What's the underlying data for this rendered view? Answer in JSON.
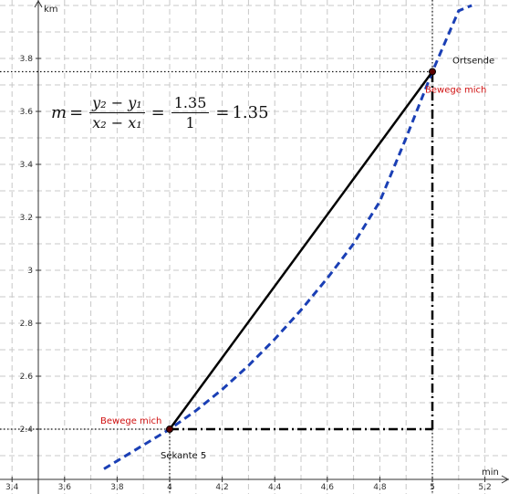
{
  "chart_data": {
    "type": "line",
    "xlabel": "min",
    "ylabel": "km",
    "xlim": [
      3.3,
      5.3
    ],
    "ylim": [
      2.25,
      4.0
    ],
    "grid": true,
    "x_ticks": [
      "3,4",
      "3,6",
      "3,8",
      "4",
      "4,2",
      "4,4",
      "4,6",
      "4,8",
      "5",
      "5,2"
    ],
    "x_tick_values": [
      3.4,
      3.6,
      3.8,
      4.0,
      4.2,
      4.4,
      4.6,
      4.8,
      5.0,
      5.2
    ],
    "y_ticks": [
      "2.4",
      "2.6",
      "2.8",
      "3",
      "3.2",
      "3.4",
      "3.6",
      "3.8"
    ],
    "y_tick_values": [
      2.4,
      2.6,
      2.8,
      3.0,
      3.2,
      3.4,
      3.6,
      3.8
    ],
    "curve": {
      "style": "dashed",
      "color": "#1a3fb5",
      "points": [
        [
          3.75,
          2.25
        ],
        [
          3.8,
          2.28
        ],
        [
          3.9,
          2.34
        ],
        [
          4.0,
          2.4
        ],
        [
          4.1,
          2.47
        ],
        [
          4.2,
          2.55
        ],
        [
          4.3,
          2.64
        ],
        [
          4.4,
          2.74
        ],
        [
          4.5,
          2.85
        ],
        [
          4.6,
          2.97
        ],
        [
          4.7,
          3.1
        ],
        [
          4.8,
          3.26
        ],
        [
          4.9,
          3.5
        ],
        [
          5.0,
          3.75
        ],
        [
          5.1,
          3.98
        ],
        [
          5.15,
          4.0
        ]
      ]
    },
    "secant": {
      "from": [
        4.0,
        2.4
      ],
      "to": [
        5.0,
        3.75
      ],
      "color": "#000000"
    },
    "triangle": {
      "corner": [
        5.0,
        2.4
      ],
      "style": "dash-dot"
    },
    "points": [
      {
        "x": 4.0,
        "y": 2.4,
        "label": "Bewege mich",
        "label_color": "#d01010"
      },
      {
        "x": 5.0,
        "y": 3.75,
        "label": "Bewege mich",
        "label_color": "#d01010"
      }
    ],
    "annotations": [
      {
        "text": "Ortsende",
        "x": 5.0,
        "y": 3.75
      },
      {
        "text": "Sekante 5",
        "x": 4.0,
        "y": 2.4
      }
    ]
  },
  "formula": {
    "m": "m",
    "eq": "=",
    "num1": "y₂ − y₁",
    "den1": "x₂ − x₁",
    "num2": "1.35",
    "den2": "1",
    "result": "1.35"
  },
  "labels": {
    "ortsende": "Ortsende",
    "sekante": "Sekante 5",
    "bewege_top": "Bewege mich",
    "bewege_bottom": "Bewege mich"
  }
}
